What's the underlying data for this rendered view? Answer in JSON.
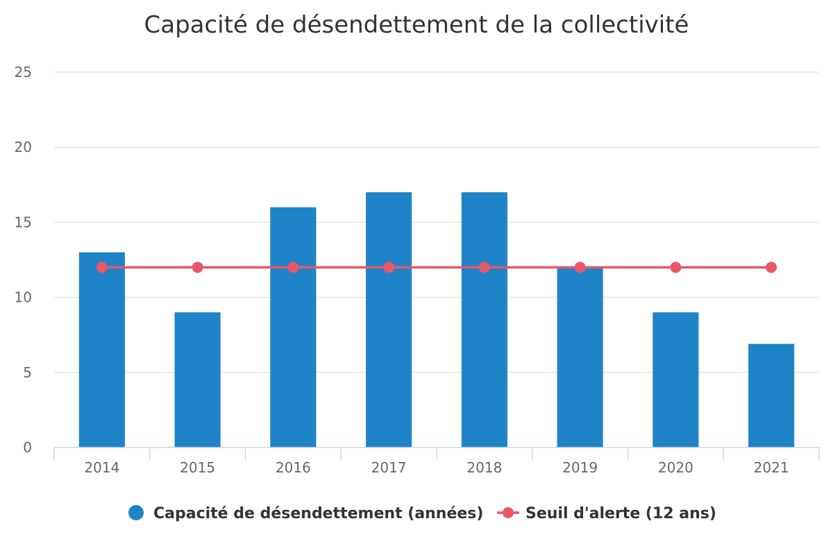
{
  "chart_data": {
    "type": "bar",
    "title": "Capacité de désendettement de la collectivité",
    "categories": [
      "2014",
      "2015",
      "2016",
      "2017",
      "2018",
      "2019",
      "2020",
      "2021"
    ],
    "ylim": [
      0,
      25
    ],
    "yticks": [
      0,
      5,
      10,
      15,
      20,
      25
    ],
    "grid": true,
    "legend_position": "bottom-center",
    "series": [
      {
        "name": "Capacité de désendettement (années)",
        "type": "bar",
        "color": "#1f83c8",
        "values": [
          13,
          9,
          16,
          17,
          17,
          12,
          9,
          6.9
        ]
      },
      {
        "name": "Seuil d'alerte (12 ans)",
        "type": "line",
        "color": "#e8566a",
        "values": [
          12,
          12,
          12,
          12,
          12,
          12,
          12,
          12
        ]
      }
    ]
  }
}
